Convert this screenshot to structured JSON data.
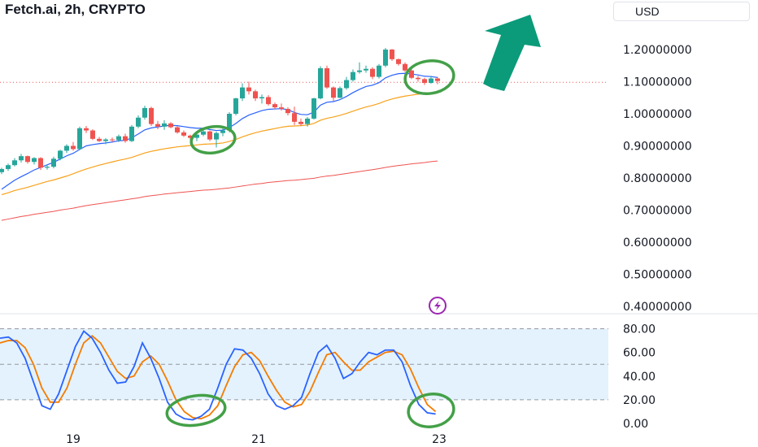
{
  "header": {
    "title": "Fetch.ai, 2h, CRYPTO",
    "currency": "USD"
  },
  "colors": {
    "up": "#26a69a",
    "down": "#ef5350",
    "ema_fast": "#2962ff",
    "ema_mid": "#f7a21b",
    "ema_slow": "#ef5350",
    "stoch_k": "#2962ff",
    "stoch_d": "#f57c00",
    "band": "#e3f2fd",
    "annotation_circle": "#43a047",
    "arrow": "#0b9b7a",
    "lightning_badge": "#9c27b0"
  },
  "chart_data": [
    {
      "type": "candlestick",
      "title": "Fetch.ai, 2h, CRYPTO",
      "y_axis_labels": [
        "1.20000000",
        "1.10000000",
        "1.00000000",
        "0.90000000",
        "0.80000000",
        "0.70000000",
        "0.60000000",
        "0.50000000",
        "0.40000000"
      ],
      "ylim": [
        0.4,
        1.2
      ],
      "x_axis_labels": [
        "19",
        "21",
        "23"
      ],
      "reference_line": 1.098,
      "candles": [
        [
          0.818,
          0.832,
          0.812,
          0.828
        ],
        [
          0.828,
          0.845,
          0.822,
          0.84
        ],
        [
          0.84,
          0.862,
          0.836,
          0.855
        ],
        [
          0.855,
          0.875,
          0.848,
          0.868
        ],
        [
          0.868,
          0.87,
          0.845,
          0.85
        ],
        [
          0.85,
          0.865,
          0.842,
          0.862
        ],
        [
          0.862,
          0.865,
          0.825,
          0.832
        ],
        [
          0.832,
          0.842,
          0.826,
          0.835
        ],
        [
          0.835,
          0.866,
          0.83,
          0.86
        ],
        [
          0.86,
          0.888,
          0.855,
          0.885
        ],
        [
          0.885,
          0.905,
          0.878,
          0.9
        ],
        [
          0.9,
          0.912,
          0.885,
          0.89
        ],
        [
          0.89,
          0.96,
          0.888,
          0.955
        ],
        [
          0.955,
          0.962,
          0.94,
          0.948
        ],
        [
          0.948,
          0.952,
          0.918,
          0.922
        ],
        [
          0.922,
          0.928,
          0.912,
          0.915
        ],
        [
          0.915,
          0.924,
          0.905,
          0.92
        ],
        [
          0.92,
          0.926,
          0.912,
          0.918
        ],
        [
          0.918,
          0.935,
          0.912,
          0.93
        ],
        [
          0.93,
          0.938,
          0.91,
          0.915
        ],
        [
          0.915,
          0.965,
          0.912,
          0.96
        ],
        [
          0.96,
          0.995,
          0.955,
          0.988
        ],
        [
          0.988,
          1.025,
          0.982,
          1.018
        ],
        [
          1.018,
          1.022,
          0.962,
          0.968
        ],
        [
          0.968,
          0.978,
          0.952,
          0.96
        ],
        [
          0.96,
          0.98,
          0.95,
          0.97
        ],
        [
          0.97,
          0.974,
          0.955,
          0.958
        ],
        [
          0.958,
          0.962,
          0.938,
          0.942
        ],
        [
          0.942,
          0.948,
          0.928,
          0.932
        ],
        [
          0.932,
          0.935,
          0.918,
          0.925
        ],
        [
          0.925,
          0.945,
          0.915,
          0.935
        ],
        [
          0.935,
          0.95,
          0.93,
          0.945
        ],
        [
          0.945,
          0.948,
          0.915,
          0.92
        ],
        [
          0.92,
          0.945,
          0.895,
          0.94
        ],
        [
          0.94,
          0.96,
          0.93,
          0.948
        ],
        [
          0.948,
          1.005,
          0.942,
          1.0
        ],
        [
          1.0,
          1.05,
          0.995,
          1.048
        ],
        [
          1.048,
          1.095,
          1.04,
          1.082
        ],
        [
          1.082,
          1.1,
          1.06,
          1.07
        ],
        [
          1.07,
          1.075,
          1.04,
          1.048
        ],
        [
          1.048,
          1.06,
          1.032,
          1.052
        ],
        [
          1.052,
          1.058,
          1.025,
          1.03
        ],
        [
          1.03,
          1.035,
          1.015,
          1.02
        ],
        [
          1.02,
          1.032,
          1.01,
          1.015
        ],
        [
          1.015,
          1.02,
          0.995,
          1.002
        ],
        [
          1.002,
          1.022,
          0.965,
          0.975
        ],
        [
          0.975,
          0.985,
          0.962,
          0.968
        ],
        [
          0.968,
          0.99,
          0.96,
          0.985
        ],
        [
          0.985,
          1.05,
          0.982,
          1.048
        ],
        [
          1.048,
          1.148,
          1.045,
          1.142
        ],
        [
          1.142,
          1.15,
          1.078,
          1.082
        ],
        [
          1.082,
          1.085,
          1.04,
          1.05
        ],
        [
          1.05,
          1.085,
          1.048,
          1.08
        ],
        [
          1.08,
          1.115,
          1.075,
          1.105
        ],
        [
          1.105,
          1.138,
          1.1,
          1.13
        ],
        [
          1.13,
          1.16,
          1.125,
          1.135
        ],
        [
          1.135,
          1.15,
          1.128,
          1.14
        ],
        [
          1.14,
          1.145,
          1.108,
          1.115
        ],
        [
          1.115,
          1.155,
          1.11,
          1.15
        ],
        [
          1.15,
          1.205,
          1.145,
          1.2
        ],
        [
          1.2,
          1.202,
          1.165,
          1.17
        ],
        [
          1.17,
          1.172,
          1.15,
          1.155
        ],
        [
          1.155,
          1.16,
          1.13,
          1.135
        ],
        [
          1.135,
          1.14,
          1.108,
          1.112
        ],
        [
          1.112,
          1.118,
          1.1,
          1.108
        ],
        [
          1.108,
          1.112,
          1.09,
          1.096
        ],
        [
          1.096,
          1.118,
          1.094,
          1.11
        ],
        [
          1.11,
          1.115,
          1.092,
          1.102
        ]
      ],
      "ema_fast": [
        0.765,
        0.779,
        0.793,
        0.804,
        0.814,
        0.825,
        0.833,
        0.841,
        0.849,
        0.859,
        0.869,
        0.877,
        0.889,
        0.9,
        0.904,
        0.907,
        0.909,
        0.912,
        0.916,
        0.917,
        0.925,
        0.937,
        0.95,
        0.956,
        0.959,
        0.962,
        0.964,
        0.963,
        0.96,
        0.957,
        0.955,
        0.955,
        0.951,
        0.948,
        0.949,
        0.957,
        0.97,
        0.985,
        0.996,
        1.003,
        1.01,
        1.014,
        1.015,
        1.016,
        1.013,
        1.004,
        0.998,
        0.997,
        1.005,
        1.027,
        1.036,
        1.038,
        1.044,
        1.054,
        1.066,
        1.076,
        1.085,
        1.089,
        1.097,
        1.112,
        1.12,
        1.125,
        1.126,
        1.124,
        1.121,
        1.117,
        1.116,
        1.113
      ],
      "ema_mid": [
        0.748,
        0.754,
        0.761,
        0.766,
        0.771,
        0.777,
        0.783,
        0.789,
        0.794,
        0.8,
        0.806,
        0.813,
        0.821,
        0.828,
        0.834,
        0.84,
        0.845,
        0.85,
        0.855,
        0.859,
        0.864,
        0.871,
        0.878,
        0.883,
        0.887,
        0.891,
        0.894,
        0.897,
        0.899,
        0.901,
        0.903,
        0.905,
        0.906,
        0.907,
        0.909,
        0.914,
        0.92,
        0.928,
        0.935,
        0.941,
        0.946,
        0.95,
        0.954,
        0.958,
        0.961,
        0.962,
        0.963,
        0.965,
        0.97,
        0.98,
        0.986,
        0.99,
        0.995,
        1.001,
        1.008,
        1.015,
        1.021,
        1.026,
        1.032,
        1.04,
        1.046,
        1.051,
        1.055,
        1.058,
        1.061,
        1.063,
        1.066,
        1.068
      ],
      "ema_slow": [
        0.668,
        0.672,
        0.676,
        0.68,
        0.683,
        0.687,
        0.69,
        0.693,
        0.696,
        0.7,
        0.703,
        0.706,
        0.71,
        0.714,
        0.717,
        0.72,
        0.723,
        0.726,
        0.729,
        0.732,
        0.735,
        0.738,
        0.742,
        0.745,
        0.747,
        0.75,
        0.752,
        0.754,
        0.756,
        0.758,
        0.76,
        0.762,
        0.763,
        0.765,
        0.767,
        0.769,
        0.772,
        0.775,
        0.778,
        0.781,
        0.783,
        0.786,
        0.788,
        0.79,
        0.792,
        0.793,
        0.795,
        0.797,
        0.799,
        0.803,
        0.806,
        0.808,
        0.811,
        0.814,
        0.817,
        0.82,
        0.823,
        0.826,
        0.829,
        0.833,
        0.836,
        0.839,
        0.841,
        0.844,
        0.846,
        0.848,
        0.851,
        0.853
      ]
    },
    {
      "type": "line",
      "y_axis_labels": [
        "80.00",
        "60.00",
        "40.00",
        "20.00",
        "0.00"
      ],
      "ylim": [
        0,
        80
      ],
      "band": [
        20,
        80
      ],
      "series": [
        {
          "key": "k",
          "values": [
            72,
            73,
            68,
            55,
            35,
            15,
            12,
            25,
            45,
            65,
            78,
            72,
            60,
            45,
            34,
            35,
            48,
            68,
            55,
            38,
            18,
            8,
            4,
            3,
            6,
            12,
            30,
            50,
            63,
            62,
            55,
            42,
            25,
            15,
            12,
            15,
            22,
            42,
            60,
            66,
            55,
            38,
            42,
            52,
            60,
            58,
            62,
            62,
            52,
            32,
            16,
            9,
            8
          ]
        },
        {
          "key": "d",
          "values": [
            68,
            70,
            70,
            64,
            50,
            30,
            18,
            18,
            30,
            50,
            68,
            74,
            68,
            56,
            44,
            38,
            40,
            52,
            57,
            50,
            36,
            20,
            10,
            5,
            4,
            7,
            15,
            32,
            48,
            58,
            60,
            53,
            40,
            28,
            18,
            14,
            16,
            27,
            43,
            58,
            60,
            52,
            45,
            45,
            52,
            56,
            60,
            61,
            58,
            46,
            30,
            16,
            10
          ]
        }
      ]
    }
  ]
}
